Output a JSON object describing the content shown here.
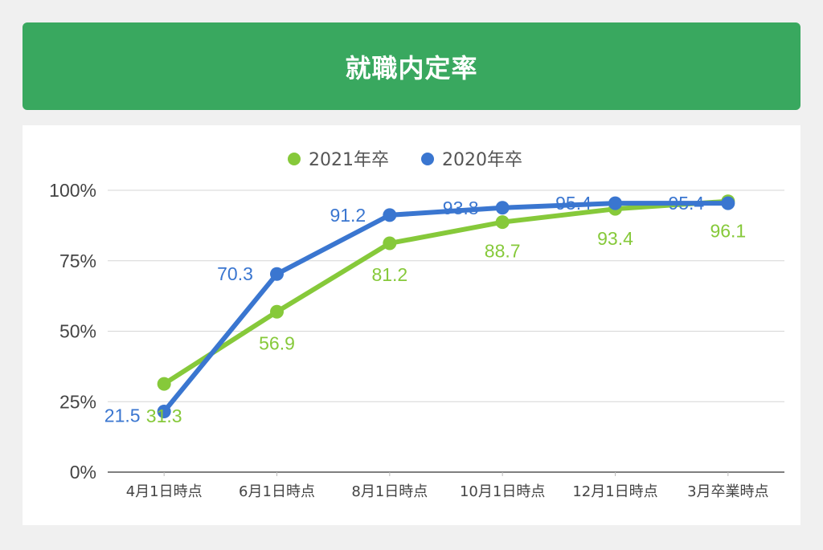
{
  "header": {
    "title": "就職内定率"
  },
  "colors": {
    "header_bg": "#39a85f",
    "series_2021": "#86c93a",
    "series_2020": "#3a76d0",
    "grid": "#d6d6d6"
  },
  "chart_data": {
    "type": "line",
    "title": "就職内定率",
    "categories": [
      "4月1日時点",
      "6月1日時点",
      "8月1日時点",
      "10月1日時点",
      "12月1日時点",
      "3月卒業時点"
    ],
    "series": [
      {
        "name": "2021年卒",
        "color": "#86c93a",
        "values": [
          31.3,
          56.9,
          81.2,
          88.7,
          93.4,
          96.1
        ],
        "labels": [
          "31.3",
          "56.9",
          "81.2",
          "88.7",
          "93.4",
          "96.1"
        ]
      },
      {
        "name": "2020年卒",
        "color": "#3a76d0",
        "values": [
          21.5,
          70.3,
          91.2,
          93.8,
          95.4,
          95.4
        ],
        "labels": [
          "21.5",
          "70.3",
          "91.2",
          "93.8",
          "95.4",
          "95.4"
        ]
      }
    ],
    "yticks": [
      0,
      25,
      50,
      75,
      100
    ],
    "ytick_labels": [
      "0%",
      "25%",
      "50%",
      "75%",
      "100%"
    ],
    "ylim": [
      0,
      100
    ],
    "legend_position": "top-center",
    "grid": true
  }
}
